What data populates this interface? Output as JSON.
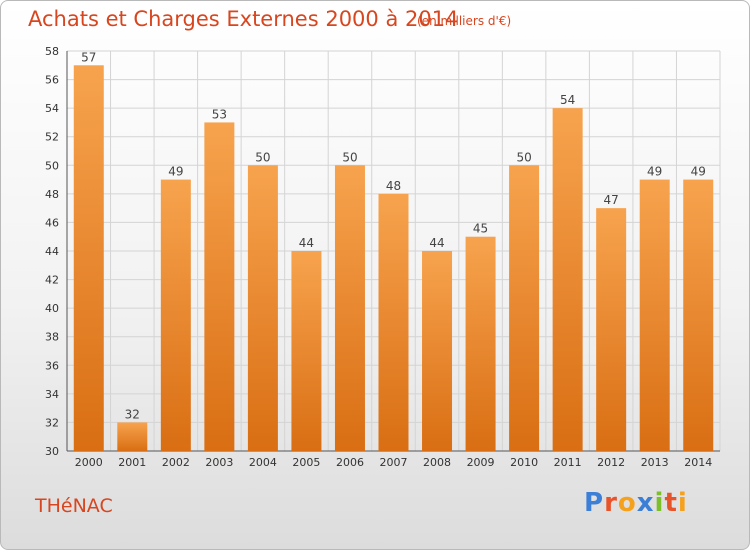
{
  "header": {
    "title": "Achats et Charges Externes 2000 à 2014",
    "unit": "(en milliers d'€)"
  },
  "footer": {
    "commune": "THéNAC",
    "logo_text": "Proxiti",
    "logo_colors": [
      "#3b7fd6",
      "#e8532a",
      "#f5a11c",
      "#3b7fd6",
      "#7bbf2a",
      "#e8532a",
      "#f5a11c"
    ]
  },
  "colors": {
    "bar_top": "#f7a34e",
    "bar_bottom": "#d96e13",
    "grid": "#d4d4d4",
    "text_accent": "#d8461f"
  },
  "chart_data": {
    "type": "bar",
    "title": "Achats et Charges Externes 2000 à 2014",
    "xlabel": "",
    "ylabel": "",
    "categories": [
      "2000",
      "2001",
      "2002",
      "2003",
      "2004",
      "2005",
      "2006",
      "2007",
      "2008",
      "2009",
      "2010",
      "2011",
      "2012",
      "2013",
      "2014"
    ],
    "values": [
      57,
      32,
      49,
      53,
      50,
      44,
      50,
      48,
      44,
      45,
      50,
      54,
      47,
      49,
      49
    ],
    "ylim": [
      30,
      58
    ],
    "yticks": [
      30,
      32,
      34,
      36,
      38,
      40,
      42,
      44,
      46,
      48,
      50,
      52,
      54,
      56,
      58
    ],
    "grid": true,
    "data_labels": true
  }
}
